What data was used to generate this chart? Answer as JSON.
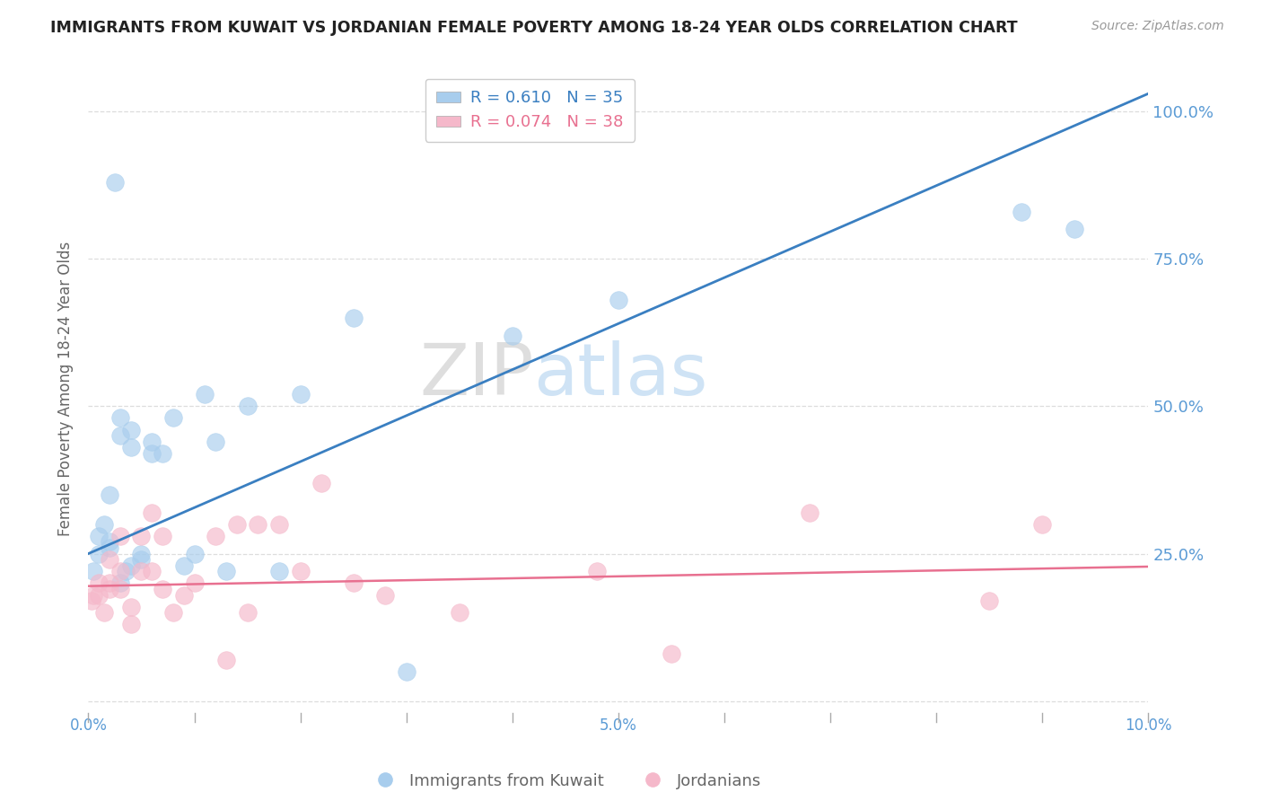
{
  "title": "IMMIGRANTS FROM KUWAIT VS JORDANIAN FEMALE POVERTY AMONG 18-24 YEAR OLDS CORRELATION CHART",
  "source": "Source: ZipAtlas.com",
  "ylabel": "Female Poverty Among 18-24 Year Olds",
  "xlim": [
    0.0,
    0.1
  ],
  "ylim": [
    -0.02,
    1.08
  ],
  "yticks": [
    0.0,
    0.25,
    0.5,
    0.75,
    1.0
  ],
  "ytick_labels": [
    "",
    "25.0%",
    "50.0%",
    "75.0%",
    "100.0%"
  ],
  "xtick_positions": [
    0.0,
    0.01,
    0.02,
    0.03,
    0.04,
    0.05,
    0.06,
    0.07,
    0.08,
    0.09,
    0.1
  ],
  "xtick_labels": [
    "0.0%",
    "",
    "",
    "",
    "",
    "5.0%",
    "",
    "",
    "",
    "",
    "10.0%"
  ],
  "legend_blue_r": "R = 0.610",
  "legend_blue_n": "N = 35",
  "legend_pink_r": "R = 0.074",
  "legend_pink_n": "N = 38",
  "blue_color": "#A8CDED",
  "pink_color": "#F5B8CA",
  "blue_line_color": "#3A7FC1",
  "pink_line_color": "#E87090",
  "blue_scatter": {
    "x": [
      0.0005,
      0.001,
      0.001,
      0.0015,
      0.002,
      0.002,
      0.002,
      0.0025,
      0.003,
      0.003,
      0.003,
      0.0035,
      0.004,
      0.004,
      0.004,
      0.005,
      0.005,
      0.006,
      0.006,
      0.007,
      0.008,
      0.009,
      0.01,
      0.011,
      0.012,
      0.013,
      0.015,
      0.018,
      0.02,
      0.025,
      0.03,
      0.04,
      0.05,
      0.088,
      0.093
    ],
    "y": [
      0.22,
      0.28,
      0.25,
      0.3,
      0.26,
      0.27,
      0.35,
      0.88,
      0.45,
      0.48,
      0.2,
      0.22,
      0.43,
      0.46,
      0.23,
      0.24,
      0.25,
      0.42,
      0.44,
      0.42,
      0.48,
      0.23,
      0.25,
      0.52,
      0.44,
      0.22,
      0.5,
      0.22,
      0.52,
      0.65,
      0.05,
      0.62,
      0.68,
      0.83,
      0.8
    ]
  },
  "pink_scatter": {
    "x": [
      0.0003,
      0.0005,
      0.001,
      0.001,
      0.0015,
      0.002,
      0.002,
      0.002,
      0.003,
      0.003,
      0.003,
      0.004,
      0.004,
      0.005,
      0.005,
      0.006,
      0.006,
      0.007,
      0.007,
      0.008,
      0.009,
      0.01,
      0.012,
      0.013,
      0.014,
      0.015,
      0.016,
      0.018,
      0.02,
      0.022,
      0.025,
      0.028,
      0.035,
      0.048,
      0.055,
      0.068,
      0.085,
      0.09
    ],
    "y": [
      0.17,
      0.18,
      0.2,
      0.18,
      0.15,
      0.2,
      0.24,
      0.19,
      0.19,
      0.22,
      0.28,
      0.13,
      0.16,
      0.22,
      0.28,
      0.32,
      0.22,
      0.19,
      0.28,
      0.15,
      0.18,
      0.2,
      0.28,
      0.07,
      0.3,
      0.15,
      0.3,
      0.3,
      0.22,
      0.37,
      0.2,
      0.18,
      0.15,
      0.22,
      0.08,
      0.32,
      0.17,
      0.3
    ]
  },
  "blue_line": {
    "x0": 0.0,
    "y0": 0.25,
    "x1": 0.1,
    "y1": 1.03
  },
  "pink_line": {
    "x0": 0.0,
    "y0": 0.195,
    "x1": 0.1,
    "y1": 0.228
  },
  "background_color": "#FFFFFF",
  "grid_color": "#DDDDDD",
  "title_color": "#222222",
  "axis_tick_color": "#5B9BD5",
  "ylabel_color": "#666666",
  "watermark_zip_color": "#C8C8C8",
  "watermark_atlas_color": "#A8CDED",
  "legend_blue_color": "#3A7FC1",
  "legend_pink_color": "#E87090",
  "bottom_legend_color": "#666666"
}
